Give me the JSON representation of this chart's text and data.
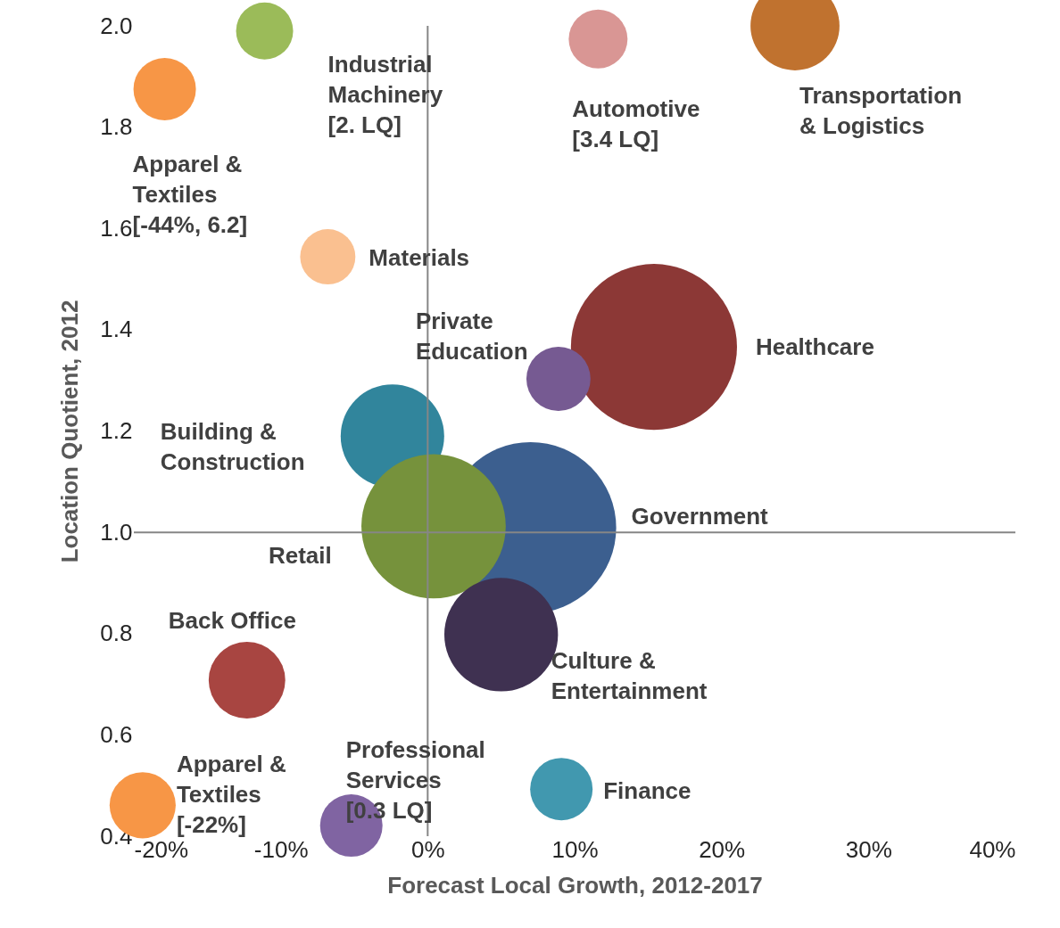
{
  "chart_data": {
    "type": "bubble",
    "xlabel": "Forecast Local Growth, 2012-2017",
    "ylabel": "Location Quotient, 2012",
    "x": [
      -17.9,
      -11.1,
      11.6,
      25.0,
      -6.8,
      15.4,
      8.9,
      -2.4,
      7.0,
      0.4,
      5.0,
      -12.3,
      9.1,
      -19.4,
      -5.2
    ],
    "values": [
      1.875,
      1.99,
      1.974,
      2.0,
      1.544,
      1.366,
      1.303,
      1.19,
      1.009,
      1.012,
      0.798,
      0.708,
      0.493,
      0.461,
      0.421
    ],
    "sizes": [
      0.133,
      0.111,
      0.118,
      0.27,
      0.104,
      0.94,
      0.14,
      0.365,
      1,
      0.71,
      0.44,
      0.2,
      0.133,
      0.149,
      0.133
    ],
    "colors": [
      "#f79646",
      "#9bbb59",
      "#d99694",
      "#c0722f",
      "#fac090",
      "#8c3836",
      "#765a92",
      "#31859c",
      "#3c5f8f",
      "#76923c",
      "#3f3151",
      "#a84541",
      "#4198af",
      "#f79646",
      "#8064a2"
    ],
    "xlim": [
      -20,
      40
    ],
    "ylim": [
      0.4,
      2.0
    ],
    "xticks": [
      {
        "value": -20,
        "label": "-20%"
      },
      {
        "value": -10,
        "label": "-10%"
      },
      {
        "value": 0,
        "label": "0%"
      },
      {
        "value": 10,
        "label": "10%"
      },
      {
        "value": 20,
        "label": "20%"
      },
      {
        "value": 30,
        "label": "30%"
      },
      {
        "value": 40,
        "label": "40%"
      }
    ],
    "yticks": [
      {
        "value": 0.4,
        "label": "0.4"
      },
      {
        "value": 0.6,
        "label": "0.6"
      },
      {
        "value": 0.8,
        "label": "0.8"
      },
      {
        "value": 1.0,
        "label": "1.0"
      },
      {
        "value": 1.2,
        "label": "1.2"
      },
      {
        "value": 1.4,
        "label": "1.4"
      },
      {
        "value": 1.6,
        "label": "1.6"
      },
      {
        "value": 1.8,
        "label": "1.8"
      },
      {
        "value": 2.0,
        "label": "2.0"
      }
    ],
    "ref_lines": [
      {
        "axis": "x",
        "value": 0,
        "color": "#868686"
      },
      {
        "axis": "y",
        "value": 1.0,
        "color": "#868686"
      }
    ],
    "annotations": [
      "Apparel &\nTextiles\n[-44%, 6.2]",
      "Industrial\nMachinery\n[2. LQ]",
      "Automotive\n[3.4 LQ]",
      "Transportation\n& Logistics",
      "Materials",
      "Healthcare",
      "Private\nEducation",
      "Building &\nConstruction",
      "Government",
      "Retail",
      "Culture &\nEntertainment",
      "Back Office",
      "Finance",
      "Apparel &\nTextiles\n[-22%]",
      "Professional\nServices\n[0.3 LQ]"
    ],
    "grid": false
  }
}
